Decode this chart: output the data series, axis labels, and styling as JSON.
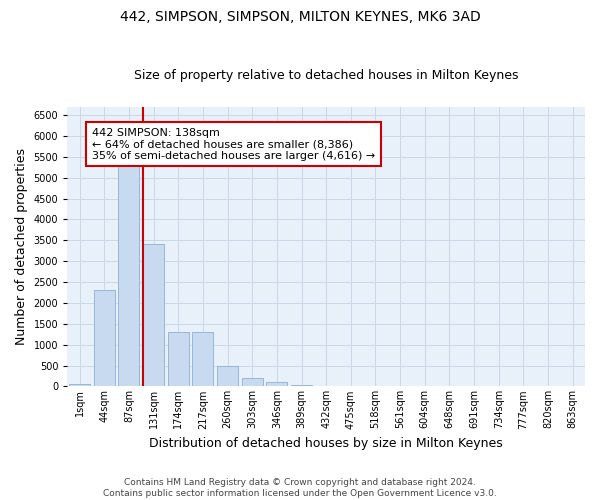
{
  "title": "442, SIMPSON, SIMPSON, MILTON KEYNES, MK6 3AD",
  "subtitle": "Size of property relative to detached houses in Milton Keynes",
  "xlabel": "Distribution of detached houses by size in Milton Keynes",
  "ylabel": "Number of detached properties",
  "footer_line1": "Contains HM Land Registry data © Crown copyright and database right 2024.",
  "footer_line2": "Contains public sector information licensed under the Open Government Licence v3.0.",
  "bin_labels": [
    "1sqm",
    "44sqm",
    "87sqm",
    "131sqm",
    "174sqm",
    "217sqm",
    "260sqm",
    "303sqm",
    "346sqm",
    "389sqm",
    "432sqm",
    "475sqm",
    "518sqm",
    "561sqm",
    "604sqm",
    "648sqm",
    "691sqm",
    "734sqm",
    "777sqm",
    "820sqm",
    "863sqm"
  ],
  "bar_values": [
    50,
    2300,
    5400,
    3400,
    1300,
    1300,
    480,
    200,
    100,
    30,
    10,
    5,
    2,
    1,
    0,
    0,
    0,
    0,
    0,
    0,
    0
  ],
  "bar_color": "#c8daf0",
  "bar_edge_color": "#8ab0d8",
  "vline_bin": 3,
  "vline_color": "#cc0000",
  "annotation_text": "442 SIMPSON: 138sqm\n← 64% of detached houses are smaller (8,386)\n35% of semi-detached houses are larger (4,616) →",
  "annotation_box_facecolor": "#ffffff",
  "annotation_box_edgecolor": "#cc0000",
  "ylim": [
    0,
    6700
  ],
  "yticks": [
    0,
    500,
    1000,
    1500,
    2000,
    2500,
    3000,
    3500,
    4000,
    4500,
    5000,
    5500,
    6000,
    6500
  ],
  "grid_color": "#c8d8e8",
  "background_color": "#e8f0fa",
  "title_fontsize": 10,
  "subtitle_fontsize": 9,
  "axis_label_fontsize": 9,
  "tick_fontsize": 7,
  "footer_fontsize": 6.5,
  "annotation_fontsize": 8
}
